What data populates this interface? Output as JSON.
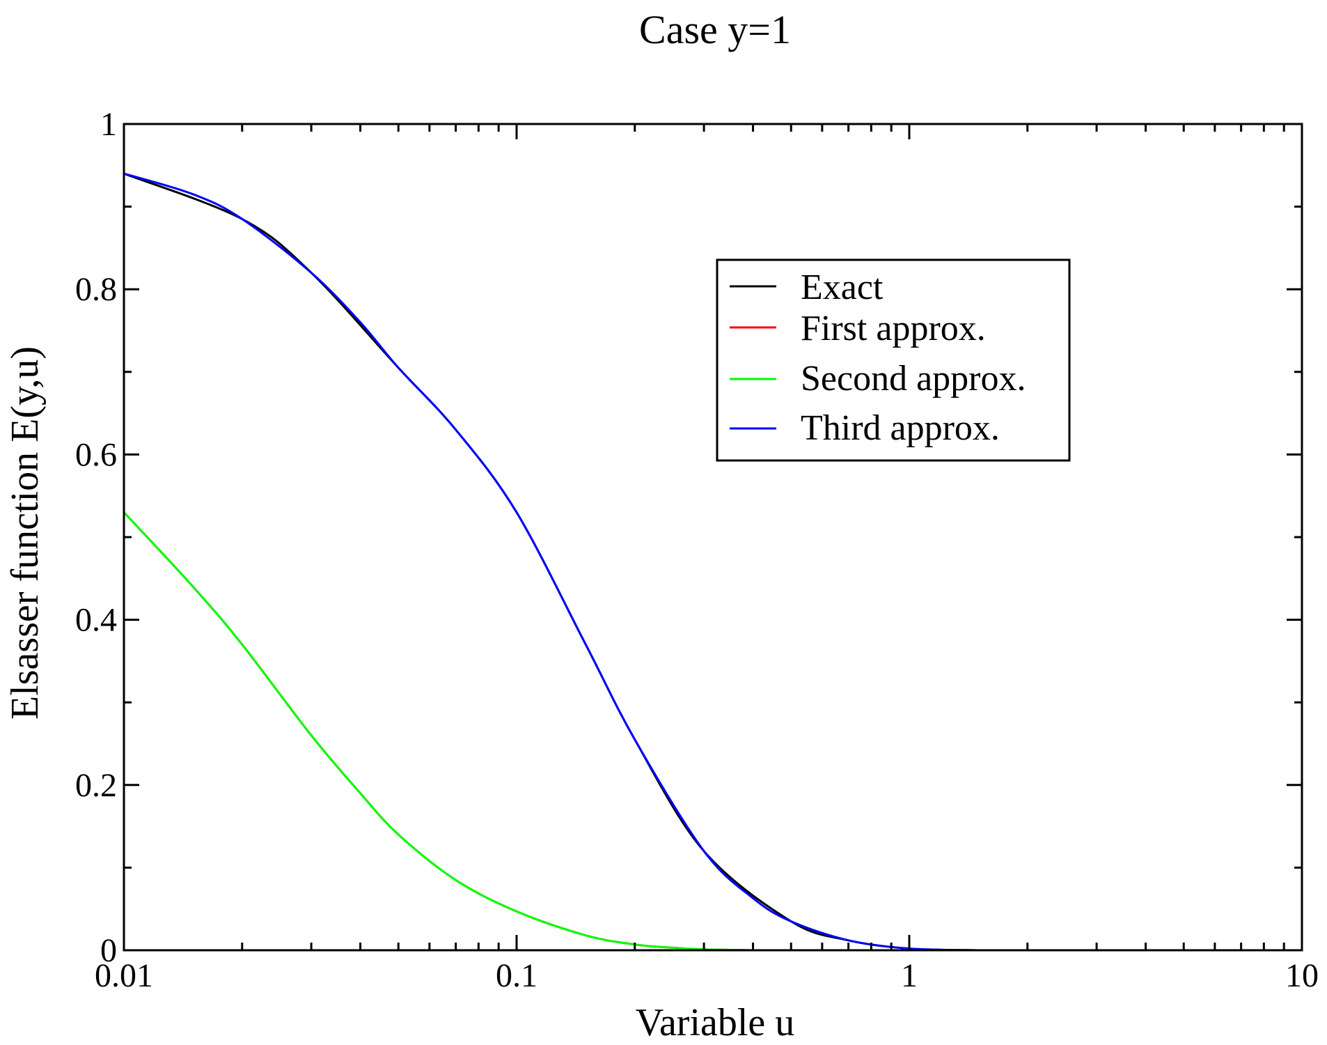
{
  "chart_data": {
    "type": "line",
    "title": "Case y=1",
    "xlabel": "Variable u",
    "ylabel": "Elsasser function E(y,u)",
    "xscale": "log",
    "xlim": [
      0.01,
      10
    ],
    "ylim": [
      0,
      1
    ],
    "xticks": [
      {
        "value": 0.01,
        "label": "0.01"
      },
      {
        "value": 0.1,
        "label": "0.1"
      },
      {
        "value": 1,
        "label": "1"
      },
      {
        "value": 10,
        "label": "10"
      }
    ],
    "yticks": [
      {
        "value": 0,
        "label": "0"
      },
      {
        "value": 0.2,
        "label": "0.2"
      },
      {
        "value": 0.4,
        "label": "0.4"
      },
      {
        "value": 0.6,
        "label": "0.6"
      },
      {
        "value": 0.8,
        "label": "0.8"
      },
      {
        "value": 1,
        "label": "1"
      }
    ],
    "legend_position": "top-right",
    "series": [
      {
        "name": "Exact",
        "color": "#000000",
        "x": [
          0.01,
          0.02,
          0.03,
          0.05,
          0.07,
          0.1,
          0.15,
          0.2,
          0.3,
          0.5,
          0.7,
          1.0,
          1.5
        ],
        "y": [
          0.94,
          0.885,
          0.82,
          0.705,
          0.63,
          0.53,
          0.37,
          0.255,
          0.12,
          0.035,
          0.012,
          0.002,
          0.0
        ]
      },
      {
        "name": "First approx.",
        "color": "#ff0000",
        "x": [
          0.01,
          0.015,
          0.02,
          0.03,
          0.04,
          0.05,
          0.07,
          0.1,
          0.15,
          0.2,
          0.25,
          0.3,
          0.4
        ],
        "y": [
          0.53,
          0.44,
          0.37,
          0.26,
          0.19,
          0.14,
          0.085,
          0.047,
          0.018,
          0.007,
          0.003,
          0.001,
          0.0
        ]
      },
      {
        "name": "Second approx.",
        "color": "#00ff00",
        "x": [
          0.01,
          0.015,
          0.02,
          0.03,
          0.04,
          0.05,
          0.07,
          0.1,
          0.15,
          0.2,
          0.25,
          0.3,
          0.4
        ],
        "y": [
          0.53,
          0.44,
          0.37,
          0.26,
          0.19,
          0.14,
          0.085,
          0.047,
          0.018,
          0.007,
          0.003,
          0.001,
          0.0
        ]
      },
      {
        "name": "Third approx.",
        "color": "#0000ff",
        "x": [
          0.01,
          0.015,
          0.02,
          0.03,
          0.04,
          0.05,
          0.07,
          0.1,
          0.15,
          0.2,
          0.3,
          0.4,
          0.5,
          0.7,
          1.0,
          1.5
        ],
        "y": [
          0.94,
          0.915,
          0.885,
          0.82,
          0.76,
          0.705,
          0.63,
          0.53,
          0.37,
          0.255,
          0.12,
          0.063,
          0.035,
          0.012,
          0.002,
          0.0
        ]
      }
    ]
  }
}
